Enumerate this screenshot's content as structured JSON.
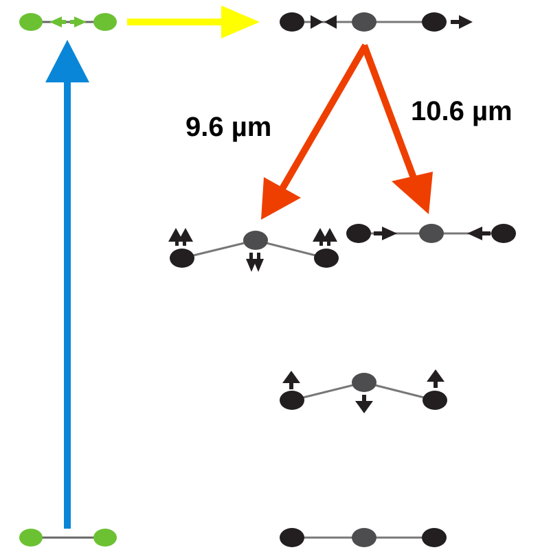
{
  "labels": {
    "left_transition": "9.6 µm",
    "right_transition": "10.6 µm"
  }
}
